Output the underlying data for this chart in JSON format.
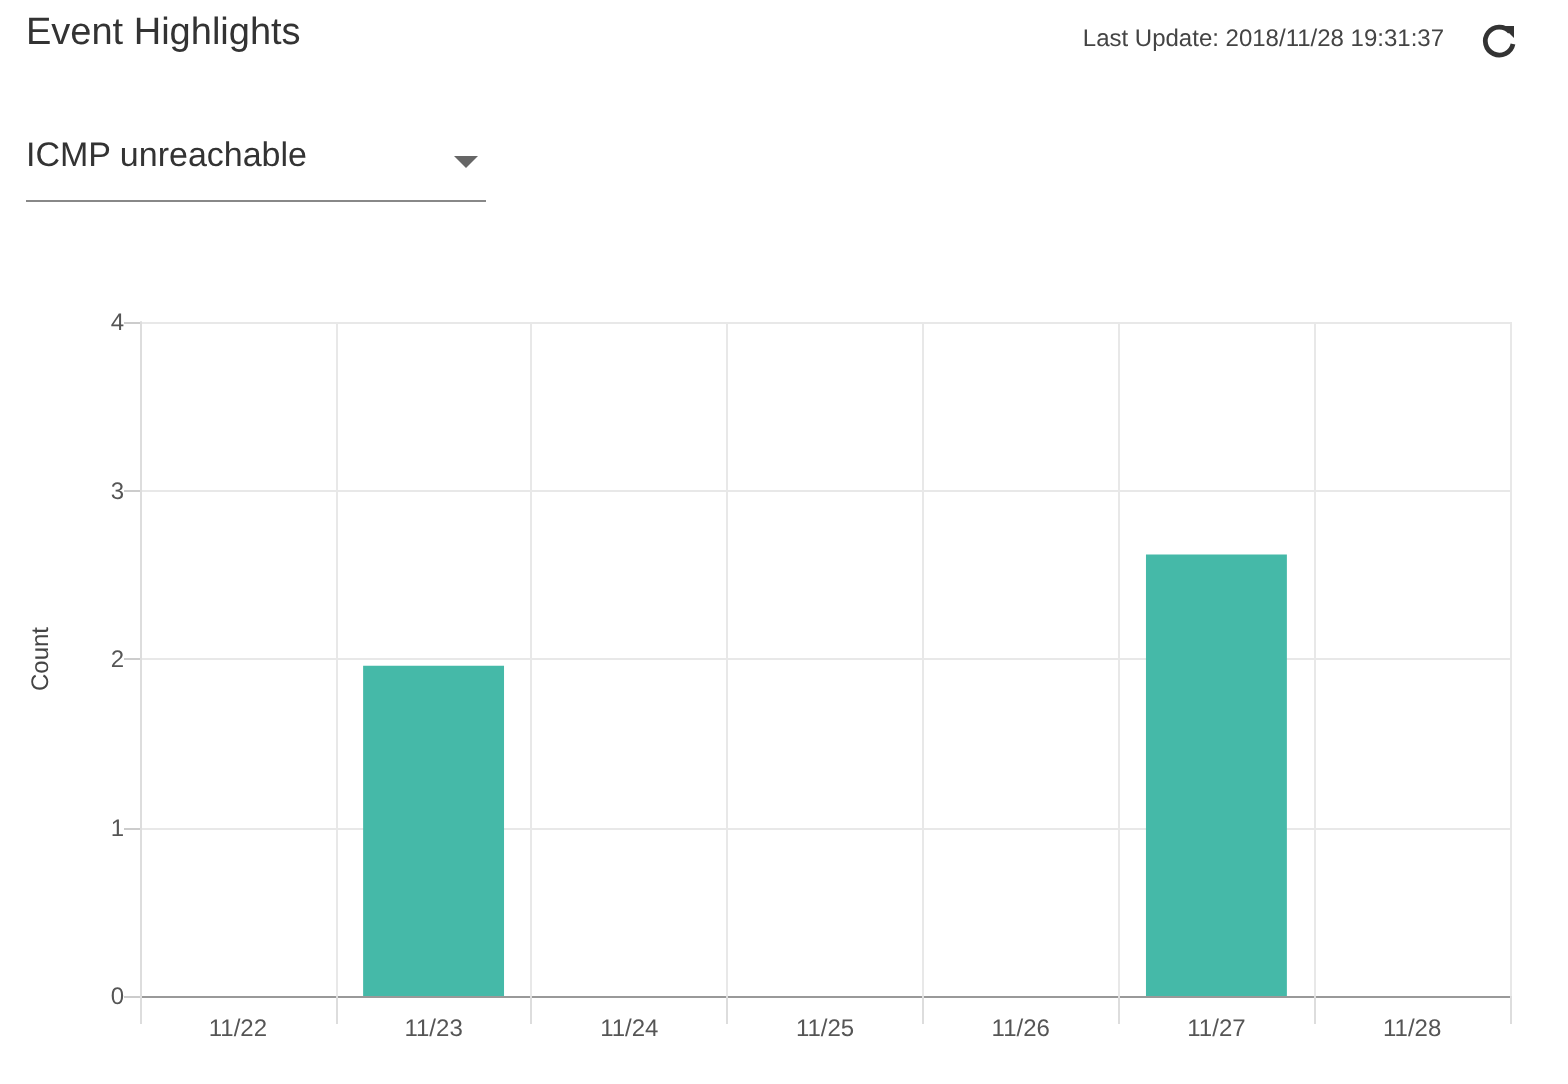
{
  "chart_data": {
    "type": "bar",
    "title": "Event Highlights",
    "subtitle": "ICMP unreachable",
    "annotations": [
      "Last Update: 2018/11/28 19:31:37"
    ],
    "ylabel": "Count",
    "categories": [
      "11/22",
      "11/23",
      "11/24",
      "11/25",
      "11/26",
      "11/27",
      "11/28"
    ],
    "values": [
      0,
      1.96,
      0,
      0,
      0,
      2.62,
      0
    ],
    "color": "#45b9a8",
    "ylim": [
      0,
      4
    ],
    "yticks": [
      0,
      1,
      2,
      3,
      4
    ],
    "grid": true
  }
}
